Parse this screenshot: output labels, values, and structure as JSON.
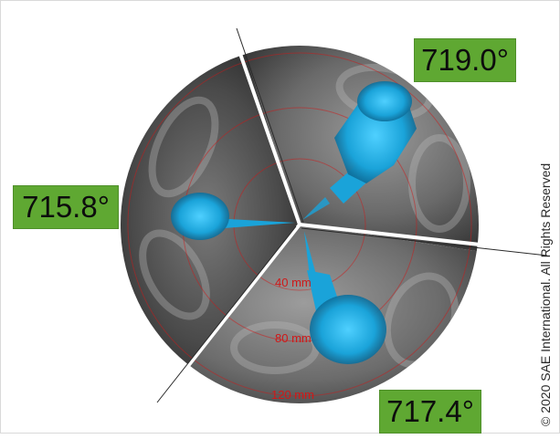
{
  "angles": {
    "top_right": "719.0°",
    "left": "715.8°",
    "bottom_right": "717.4°"
  },
  "ring_labels": [
    "40 mm",
    "80 mm",
    "120 mm"
  ],
  "copyright": "© 2020 SAE International. All Rights Reserved",
  "colors": {
    "badge_green": "#5fa832",
    "spray_blue": "#1aa3d9",
    "ring_red": "#d01818",
    "divider_white": "#ffffff"
  }
}
